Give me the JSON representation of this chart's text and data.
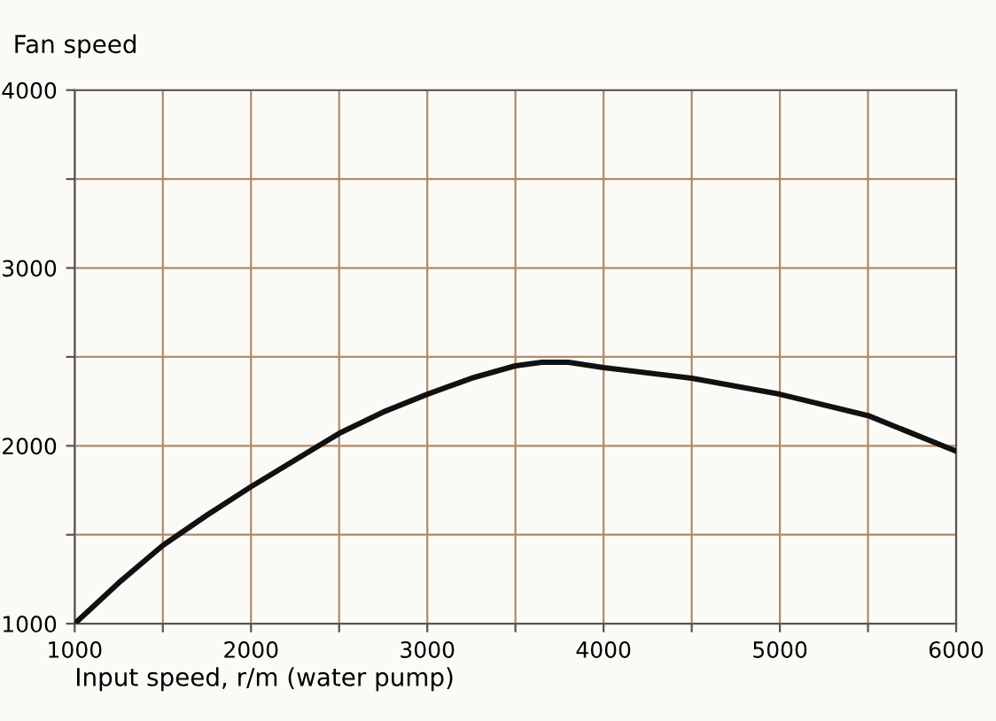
{
  "chart_data": {
    "type": "line",
    "ylabel": "Fan speed",
    "xlabel": "Input speed, r/m (water pump)",
    "x": [
      1000,
      1250,
      1500,
      1750,
      2000,
      2250,
      2500,
      2750,
      3000,
      3250,
      3500,
      3650,
      3800,
      4000,
      4500,
      5000,
      5500,
      6000
    ],
    "series": [
      {
        "color": "#111111",
        "values": [
          1000,
          1230,
          1440,
          1610,
          1770,
          1920,
          2070,
          2190,
          2290,
          2380,
          2450,
          2470,
          2470,
          2440,
          2380,
          2290,
          2170,
          1970
        ]
      }
    ],
    "xlim": [
      1000,
      6000
    ],
    "ylim": [
      1000,
      4000
    ],
    "xticks": [
      1000,
      {
        "value": 1500,
        "label": null
      },
      2000,
      {
        "value": 2500,
        "label": null
      },
      3000,
      {
        "value": 3500,
        "label": null
      },
      4000,
      {
        "value": 4500,
        "label": null
      },
      5000,
      {
        "value": 5500,
        "label": null
      },
      6000
    ],
    "yticks": [
      1000,
      {
        "value": 1500,
        "label": null
      },
      2000,
      {
        "value": 2500,
        "label": null
      },
      3000,
      {
        "value": 3500,
        "label": null
      },
      4000
    ],
    "grid": true,
    "marker": "none",
    "line_style": "solid"
  }
}
